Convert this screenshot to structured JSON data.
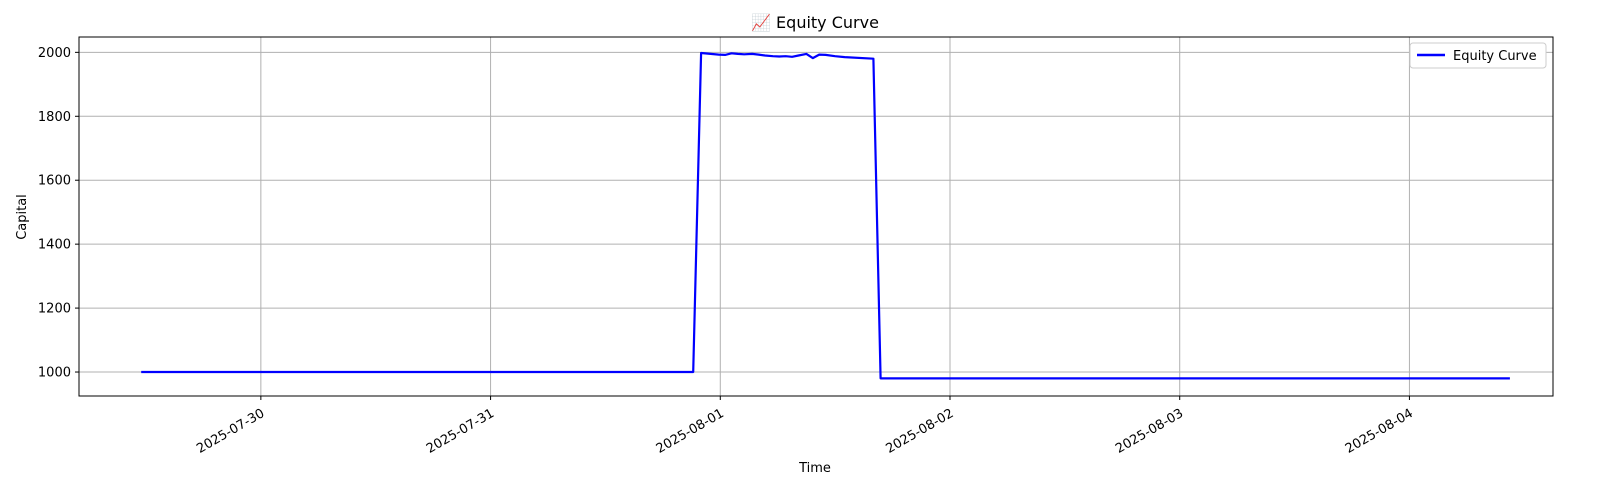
{
  "chart_data": {
    "type": "line",
    "title": "📈 Equity Curve",
    "xlabel": "Time",
    "ylabel": "Capital",
    "x_ticks": [
      "2025-07-30",
      "2025-07-31",
      "2025-08-01",
      "2025-08-02",
      "2025-08-03",
      "2025-08-04"
    ],
    "y_ticks": [
      1000,
      1200,
      1400,
      1600,
      1800,
      2000
    ],
    "ylim": [
      925,
      2048
    ],
    "xlim": [
      "2025-07-29 05:00",
      "2025-08-04 15:00"
    ],
    "grid": true,
    "legend_position": "top-right",
    "series": [
      {
        "name": "Equity Curve",
        "color": "#0000ff",
        "x": [
          "2025-07-29 11:30",
          "2025-07-31 20:30",
          "2025-07-31 21:10",
          "2025-07-31 22:00",
          "2025-07-31 23:00",
          "2025-07-31 23:50",
          "2025-08-01 00:30",
          "2025-08-01 01:10",
          "2025-08-01 01:50",
          "2025-08-01 02:30",
          "2025-08-01 03:20",
          "2025-08-01 04:00",
          "2025-08-01 04:40",
          "2025-08-01 05:30",
          "2025-08-01 06:10",
          "2025-08-01 06:50",
          "2025-08-01 07:30",
          "2025-08-01 08:10",
          "2025-08-01 09:00",
          "2025-08-01 09:40",
          "2025-08-01 10:20",
          "2025-08-01 11:00",
          "2025-08-01 12:00",
          "2025-08-01 13:00",
          "2025-08-01 16:00",
          "2025-08-01 16:45",
          "2025-08-01 17:30",
          "2025-08-04 10:30"
        ],
        "values": [
          1000,
          1000,
          1000,
          1998,
          1995,
          1993,
          1992,
          1997,
          1995,
          1994,
          1995,
          1993,
          1990,
          1988,
          1987,
          1988,
          1986,
          1990,
          1995,
          1982,
          1993,
          1992,
          1988,
          1985,
          1980,
          980,
          980,
          980
        ]
      }
    ]
  }
}
